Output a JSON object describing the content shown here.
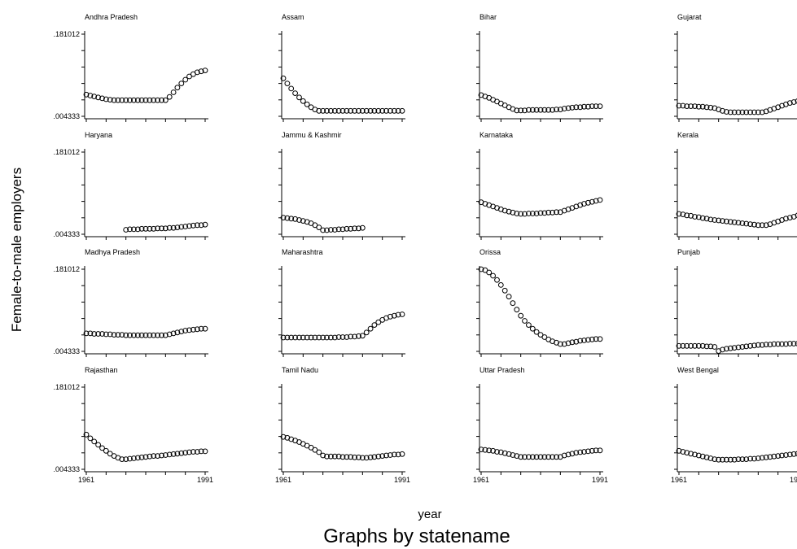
{
  "chart_data": {
    "type": "scatter",
    "layout": "small-multiples 4x4",
    "ylabel": "Female-to-male employers",
    "xlabel": "year",
    "note": "Graphs by statename",
    "x_range": [
      1961,
      1991
    ],
    "y_range": [
      0.004333,
      0.181012
    ],
    "y_tick_labels": [
      ".181012",
      ".004333"
    ],
    "x_tick_labels": [
      "1961",
      "1991"
    ],
    "marker": "hollow-circle",
    "grid": false,
    "panels": [
      {
        "name": "Andhra Pradesh",
        "x_start": 1961,
        "x_end": 1991,
        "values": [
          0.051,
          0.049,
          0.047,
          0.045,
          0.043,
          0.041,
          0.04,
          0.039,
          0.039,
          0.039,
          0.039,
          0.039,
          0.039,
          0.039,
          0.039,
          0.039,
          0.039,
          0.039,
          0.039,
          0.039,
          0.039,
          0.046,
          0.056,
          0.066,
          0.075,
          0.083,
          0.09,
          0.095,
          0.099,
          0.101,
          0.103
        ]
      },
      {
        "name": "Assam",
        "x_start": 1961,
        "x_end": 1991,
        "values": [
          0.086,
          0.075,
          0.064,
          0.054,
          0.045,
          0.037,
          0.03,
          0.024,
          0.019,
          0.016,
          0.016,
          0.016,
          0.016,
          0.016,
          0.016,
          0.016,
          0.016,
          0.016,
          0.016,
          0.016,
          0.016,
          0.016,
          0.016,
          0.016,
          0.016,
          0.016,
          0.016,
          0.016,
          0.016,
          0.016,
          0.016
        ]
      },
      {
        "name": "Bihar",
        "x_start": 1961,
        "x_end": 1991,
        "values": [
          0.05,
          0.047,
          0.044,
          0.04,
          0.036,
          0.032,
          0.028,
          0.024,
          0.02,
          0.017,
          0.017,
          0.017,
          0.018,
          0.018,
          0.018,
          0.018,
          0.018,
          0.018,
          0.018,
          0.019,
          0.019,
          0.021,
          0.022,
          0.023,
          0.024,
          0.024,
          0.025,
          0.025,
          0.026,
          0.026,
          0.026
        ]
      },
      {
        "name": "Gujarat",
        "x_start": 1961,
        "x_end": 1991,
        "values": [
          0.027,
          0.027,
          0.026,
          0.026,
          0.026,
          0.025,
          0.025,
          0.024,
          0.023,
          0.022,
          0.019,
          0.016,
          0.014,
          0.013,
          0.013,
          0.013,
          0.013,
          0.013,
          0.013,
          0.013,
          0.013,
          0.013,
          0.015,
          0.018,
          0.021,
          0.024,
          0.027,
          0.03,
          0.033,
          0.035,
          0.037
        ]
      },
      {
        "name": "Haryana",
        "x_start": 1971,
        "x_end": 1991,
        "values": [
          0.014,
          0.015,
          0.015,
          0.015,
          0.016,
          0.016,
          0.016,
          0.016,
          0.017,
          0.017,
          0.017,
          0.018,
          0.018,
          0.019,
          0.02,
          0.021,
          0.022,
          0.023,
          0.024,
          0.024,
          0.025
        ]
      },
      {
        "name": "Jammu & Kashmir",
        "x_start": 1961,
        "x_end": 1981,
        "values": [
          0.04,
          0.039,
          0.038,
          0.037,
          0.035,
          0.033,
          0.031,
          0.028,
          0.024,
          0.019,
          0.013,
          0.013,
          0.014,
          0.014,
          0.015,
          0.015,
          0.016,
          0.016,
          0.017,
          0.017,
          0.018
        ]
      },
      {
        "name": "Karnataka",
        "x_start": 1961,
        "x_end": 1991,
        "values": [
          0.073,
          0.07,
          0.067,
          0.064,
          0.061,
          0.058,
          0.055,
          0.053,
          0.051,
          0.049,
          0.048,
          0.048,
          0.049,
          0.049,
          0.049,
          0.05,
          0.05,
          0.051,
          0.051,
          0.052,
          0.052,
          0.055,
          0.058,
          0.061,
          0.064,
          0.067,
          0.07,
          0.072,
          0.074,
          0.076,
          0.078
        ]
      },
      {
        "name": "Kerala",
        "x_start": 1961,
        "x_end": 1991,
        "values": [
          0.048,
          0.047,
          0.045,
          0.044,
          0.042,
          0.041,
          0.039,
          0.038,
          0.036,
          0.035,
          0.034,
          0.033,
          0.032,
          0.031,
          0.03,
          0.029,
          0.028,
          0.027,
          0.026,
          0.025,
          0.024,
          0.024,
          0.024,
          0.026,
          0.029,
          0.032,
          0.035,
          0.038,
          0.04,
          0.042,
          0.045
        ]
      },
      {
        "name": "Madhya Pradesh",
        "x_start": 1961,
        "x_end": 1991,
        "values": [
          0.043,
          0.043,
          0.042,
          0.042,
          0.042,
          0.041,
          0.041,
          0.04,
          0.04,
          0.04,
          0.039,
          0.039,
          0.039,
          0.039,
          0.039,
          0.039,
          0.039,
          0.039,
          0.039,
          0.039,
          0.039,
          0.041,
          0.043,
          0.045,
          0.047,
          0.049,
          0.05,
          0.051,
          0.052,
          0.053,
          0.053
        ]
      },
      {
        "name": "Maharashtra",
        "x_start": 1961,
        "x_end": 1991,
        "values": [
          0.034,
          0.034,
          0.034,
          0.034,
          0.034,
          0.034,
          0.034,
          0.034,
          0.034,
          0.034,
          0.034,
          0.034,
          0.034,
          0.034,
          0.035,
          0.035,
          0.035,
          0.036,
          0.036,
          0.037,
          0.038,
          0.045,
          0.053,
          0.061,
          0.067,
          0.072,
          0.076,
          0.079,
          0.081,
          0.083,
          0.084
        ]
      },
      {
        "name": "Orissa",
        "x_start": 1961,
        "x_end": 1991,
        "values": [
          0.181,
          0.179,
          0.174,
          0.167,
          0.158,
          0.147,
          0.135,
          0.122,
          0.108,
          0.094,
          0.081,
          0.07,
          0.061,
          0.053,
          0.046,
          0.04,
          0.035,
          0.03,
          0.026,
          0.023,
          0.02,
          0.02,
          0.022,
          0.024,
          0.025,
          0.027,
          0.028,
          0.029,
          0.03,
          0.031,
          0.031
        ]
      },
      {
        "name": "Punjab",
        "x_start": 1961,
        "x_end": 1991,
        "values": [
          0.016,
          0.016,
          0.016,
          0.016,
          0.016,
          0.016,
          0.016,
          0.015,
          0.015,
          0.014,
          0.005,
          0.008,
          0.01,
          0.011,
          0.012,
          0.013,
          0.014,
          0.015,
          0.016,
          0.017,
          0.018,
          0.018,
          0.019,
          0.019,
          0.02,
          0.02,
          0.02,
          0.02,
          0.021,
          0.021,
          0.021
        ]
      },
      {
        "name": "Rajasthan",
        "x_start": 1961,
        "x_end": 1991,
        "values": [
          0.079,
          0.071,
          0.064,
          0.057,
          0.05,
          0.044,
          0.038,
          0.033,
          0.029,
          0.026,
          0.026,
          0.027,
          0.028,
          0.029,
          0.03,
          0.031,
          0.032,
          0.033,
          0.033,
          0.034,
          0.035,
          0.036,
          0.037,
          0.038,
          0.039,
          0.04,
          0.041,
          0.042,
          0.042,
          0.043,
          0.043
        ]
      },
      {
        "name": "Tamil Nadu",
        "x_start": 1961,
        "x_end": 1991,
        "values": [
          0.074,
          0.072,
          0.069,
          0.066,
          0.063,
          0.059,
          0.055,
          0.051,
          0.046,
          0.041,
          0.034,
          0.032,
          0.032,
          0.032,
          0.032,
          0.031,
          0.031,
          0.031,
          0.03,
          0.03,
          0.029,
          0.029,
          0.03,
          0.031,
          0.032,
          0.033,
          0.034,
          0.035,
          0.036,
          0.036,
          0.037
        ]
      },
      {
        "name": "Uttar Pradesh",
        "x_start": 1961,
        "x_end": 1991,
        "values": [
          0.047,
          0.046,
          0.045,
          0.044,
          0.042,
          0.041,
          0.039,
          0.037,
          0.035,
          0.033,
          0.031,
          0.031,
          0.031,
          0.031,
          0.031,
          0.031,
          0.031,
          0.031,
          0.031,
          0.031,
          0.031,
          0.034,
          0.036,
          0.038,
          0.04,
          0.041,
          0.042,
          0.043,
          0.044,
          0.045,
          0.045
        ]
      },
      {
        "name": "West Bengal",
        "x_start": 1961,
        "x_end": 1991,
        "values": [
          0.044,
          0.042,
          0.04,
          0.038,
          0.036,
          0.034,
          0.032,
          0.03,
          0.028,
          0.026,
          0.025,
          0.025,
          0.025,
          0.025,
          0.025,
          0.026,
          0.026,
          0.026,
          0.027,
          0.027,
          0.028,
          0.029,
          0.03,
          0.031,
          0.032,
          0.033,
          0.034,
          0.035,
          0.036,
          0.037,
          0.038
        ]
      }
    ]
  }
}
